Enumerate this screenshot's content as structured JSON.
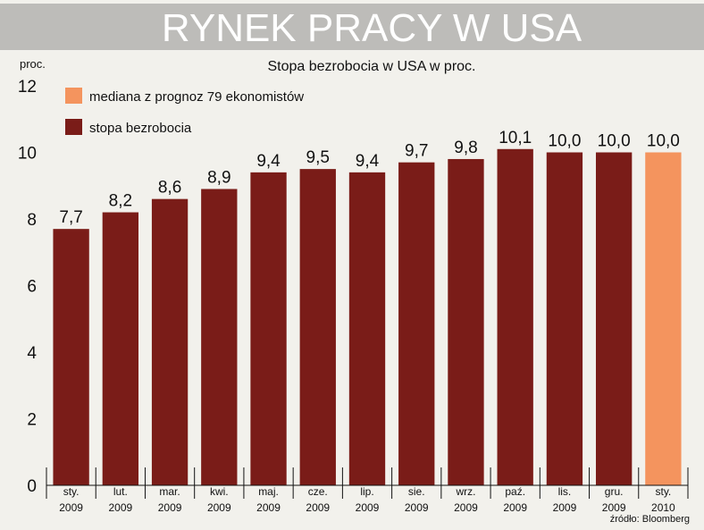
{
  "banner": {
    "title": "RYNEK PRACY W USA"
  },
  "chart_data": {
    "type": "bar",
    "title": "Stopa bezrobocia w USA w proc.",
    "ylabel": "proc.",
    "ylim": [
      0,
      12
    ],
    "yticks": [
      "0",
      "2",
      "4",
      "6",
      "8",
      "10",
      "12"
    ],
    "categories": [
      [
        "sty.",
        "2009"
      ],
      [
        "lut.",
        "2009"
      ],
      [
        "mar.",
        "2009"
      ],
      [
        "kwi.",
        "2009"
      ],
      [
        "maj.",
        "2009"
      ],
      [
        "cze.",
        "2009"
      ],
      [
        "lip.",
        "2009"
      ],
      [
        "sie.",
        "2009"
      ],
      [
        "wrz.",
        "2009"
      ],
      [
        "paź.",
        "2009"
      ],
      [
        "lis.",
        "2009"
      ],
      [
        "gru.",
        "2009"
      ],
      [
        "sty.",
        "2010"
      ]
    ],
    "values": [
      7.7,
      8.2,
      8.6,
      8.9,
      9.4,
      9.5,
      9.4,
      9.7,
      9.8,
      10.1,
      10.0,
      10.0,
      10.0
    ],
    "value_labels": [
      "7,7",
      "8,2",
      "8,6",
      "8,9",
      "9,4",
      "9,5",
      "9,4",
      "9,7",
      "9,8",
      "10,1",
      "10,0",
      "10,0",
      "10,0"
    ],
    "series_type": [
      "actual",
      "actual",
      "actual",
      "actual",
      "actual",
      "actual",
      "actual",
      "actual",
      "actual",
      "actual",
      "actual",
      "actual",
      "forecast"
    ],
    "legend": [
      {
        "key": "forecast",
        "label": "mediana z prognoz 79 ekonomistów",
        "color": "#f4945e"
      },
      {
        "key": "actual",
        "label": "stopa bezrobocia",
        "color": "#7a1c18"
      }
    ],
    "legend_position": "top-left",
    "grid": false,
    "source": "źródło: Bloomberg"
  }
}
